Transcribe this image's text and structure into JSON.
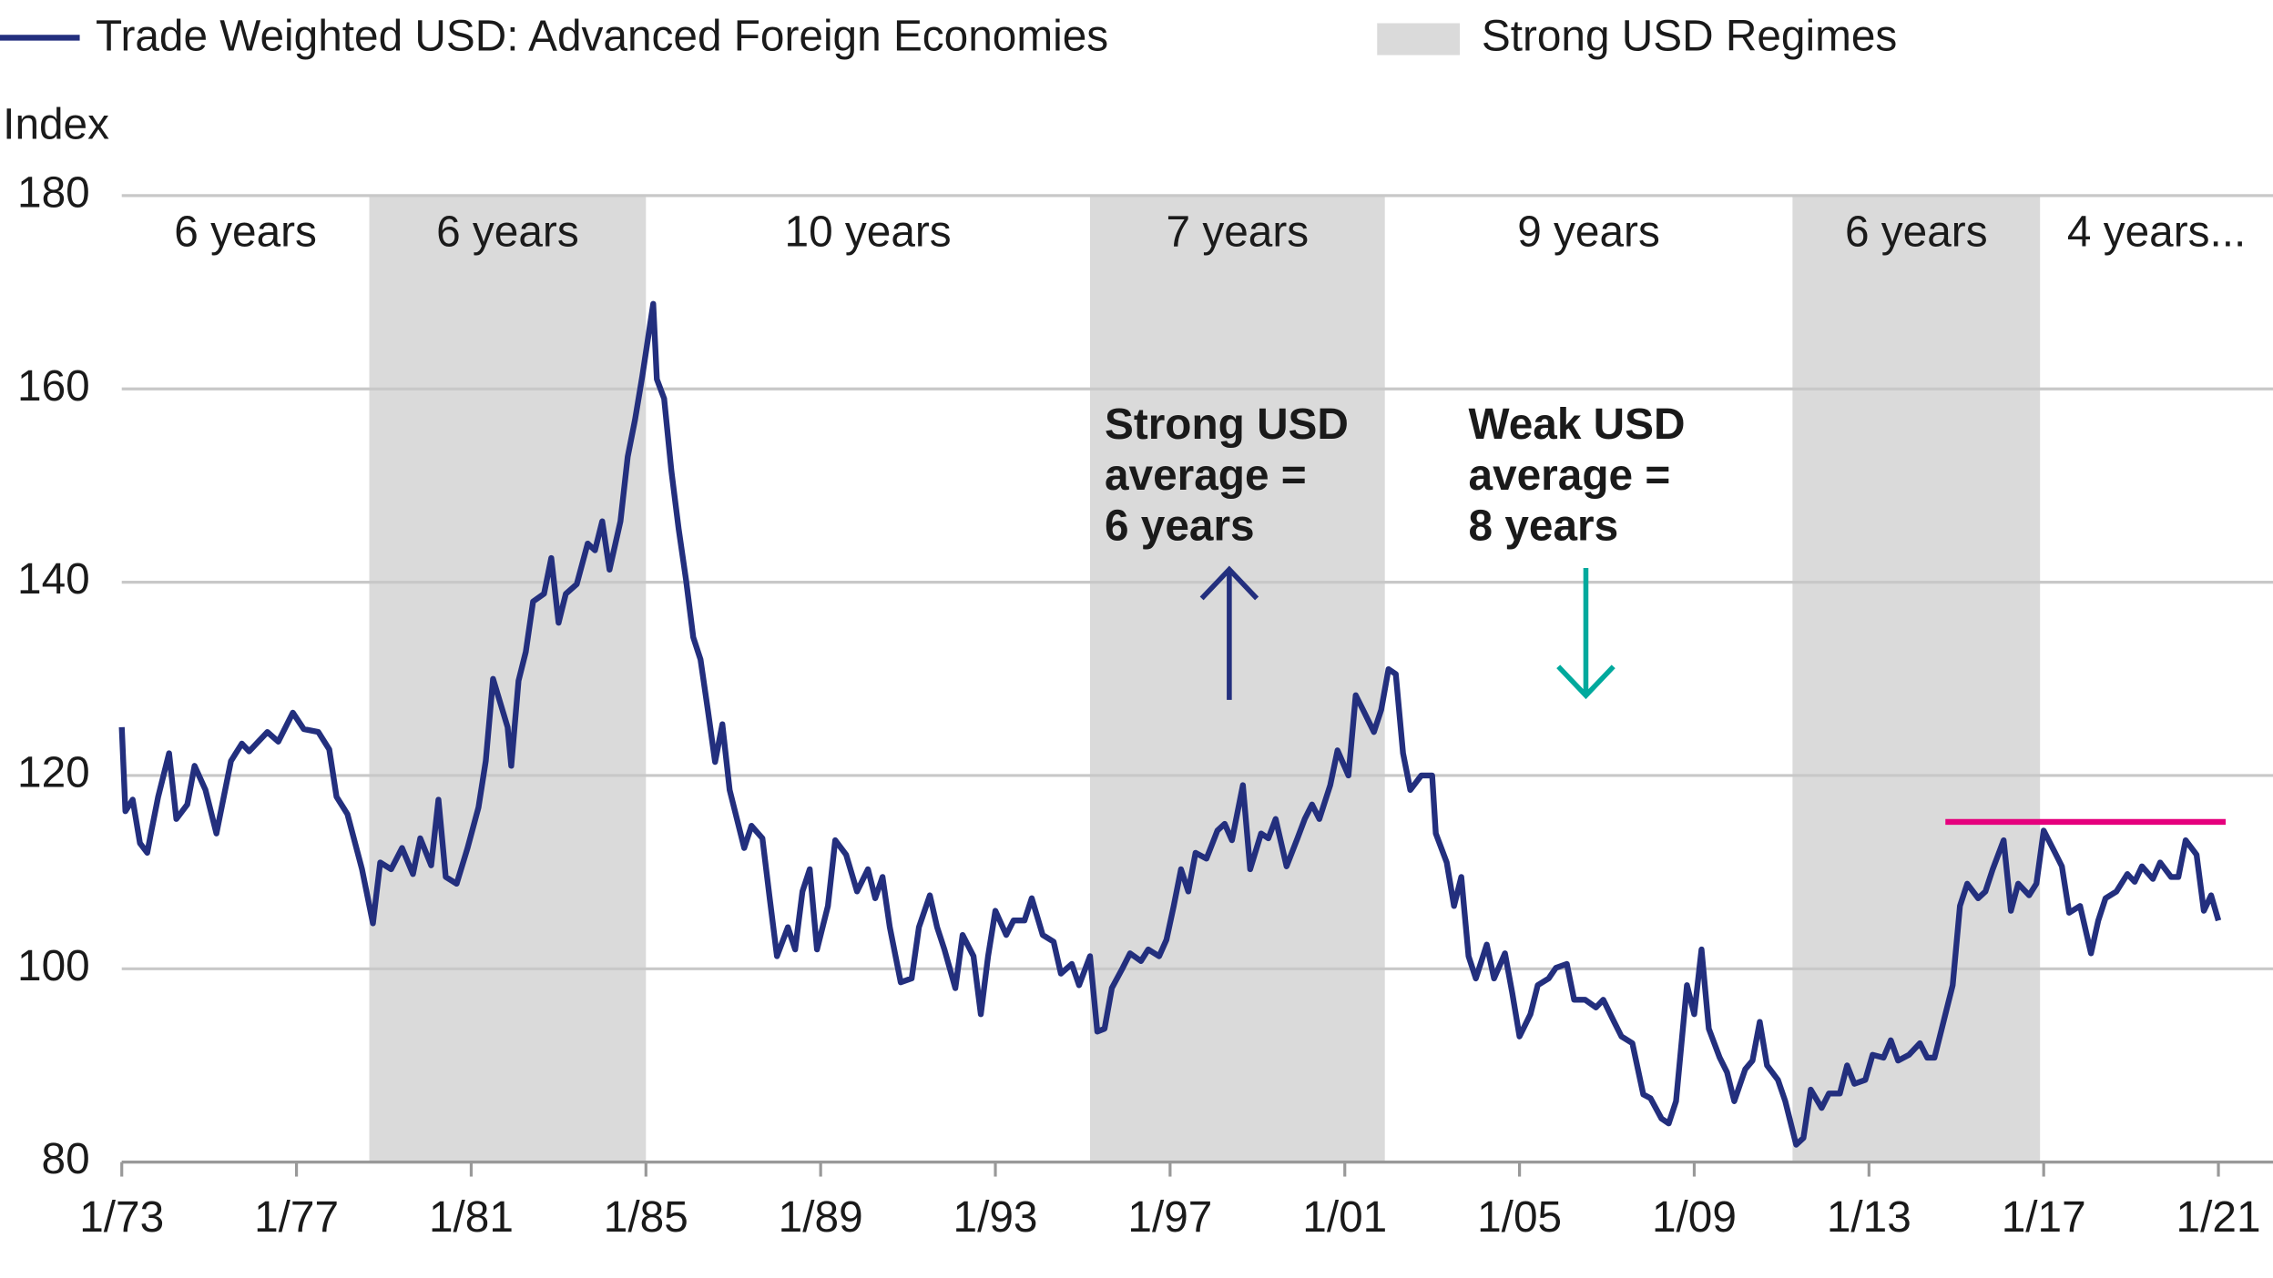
{
  "chart_data": {
    "type": "line",
    "y_axis_label": "Index",
    "xlim": [
      "1973-01",
      "2022-04"
    ],
    "xticks": [
      {
        "value": "1973-01",
        "label": "1/73"
      },
      {
        "value": "1977-01",
        "label": "1/77"
      },
      {
        "value": "1981-01",
        "label": "1/81"
      },
      {
        "value": "1985-01",
        "label": "1/85"
      },
      {
        "value": "1989-01",
        "label": "1/89"
      },
      {
        "value": "1993-01",
        "label": "1/93"
      },
      {
        "value": "1997-01",
        "label": "1/97"
      },
      {
        "value": "2001-01",
        "label": "1/01"
      },
      {
        "value": "2005-01",
        "label": "1/05"
      },
      {
        "value": "2009-01",
        "label": "1/09"
      },
      {
        "value": "2013-01",
        "label": "1/13"
      },
      {
        "value": "2017-01",
        "label": "1/17"
      },
      {
        "value": "2021-01",
        "label": "1/21"
      }
    ],
    "ylim": [
      80,
      180
    ],
    "yticks": [
      80,
      100,
      120,
      140,
      160,
      180
    ],
    "grid": true,
    "regimes": {
      "name": "Strong USD Regimes",
      "color": "#dadada",
      "periods": [
        [
          "1978-09",
          "1985-01"
        ],
        [
          "1995-03",
          "2001-12"
        ],
        [
          "2011-04",
          "2016-12"
        ]
      ]
    },
    "period_labels": {
      "labels": [
        "6 years",
        "6 years",
        "10 years",
        "7 years",
        "9 years",
        "6 years",
        "4 years..."
      ],
      "strong_color": "#1a1a1a",
      "weak_color": "#e5007d"
    },
    "reference_line": {
      "y": 115.2,
      "start": "2014-10",
      "end": "2021-03",
      "color": "#e5007d"
    },
    "annotations": [
      {
        "lines": [
          "Strong USD",
          "average =",
          "6 years"
        ],
        "color": "#232f7e",
        "arrow": "up"
      },
      {
        "lines": [
          "Weak USD",
          "average =",
          "8 years"
        ],
        "color": "#00a99d",
        "arrow": "down"
      }
    ],
    "series": [
      {
        "name": "Trade Weighted USD: Advanced Foreign Economies",
        "color": "#232f7e",
        "x": [
          "1973-01",
          "1973-02",
          "1973-04",
          "1973-06",
          "1973-08",
          "1973-09",
          "1973-11",
          "1974-02",
          "1974-04",
          "1974-07",
          "1974-09",
          "1974-12",
          "1975-03",
          "1975-07",
          "1975-10",
          "1975-12",
          "1976-05",
          "1976-08",
          "1976-12",
          "1977-03",
          "1977-07",
          "1977-10",
          "1977-12",
          "1978-03",
          "1978-07",
          "1978-10",
          "1978-12",
          "1979-03",
          "1979-06",
          "1979-09",
          "1979-11",
          "1980-02",
          "1980-04",
          "1980-06",
          "1980-09",
          "1980-12",
          "1981-03",
          "1981-05",
          "1981-07",
          "1981-11",
          "1981-12",
          "1982-02",
          "1982-04",
          "1982-06",
          "1982-09",
          "1982-11",
          "1983-01",
          "1983-03",
          "1983-06",
          "1983-09",
          "1983-11",
          "1984-01",
          "1984-03",
          "1984-06",
          "1984-08",
          "1984-10",
          "1984-12",
          "1985-03",
          "1985-04",
          "1985-06",
          "1985-08",
          "1985-10",
          "1985-12",
          "1986-02",
          "1986-04",
          "1986-06",
          "1986-08",
          "1986-10",
          "1986-12",
          "1987-04",
          "1987-06",
          "1987-09",
          "1987-11",
          "1988-01",
          "1988-04",
          "1988-06",
          "1988-08",
          "1988-10",
          "1988-12",
          "1989-03",
          "1989-05",
          "1989-08",
          "1989-11",
          "1990-02",
          "1990-04",
          "1990-06",
          "1990-08",
          "1990-11",
          "1991-02",
          "1991-04",
          "1991-07",
          "1991-09",
          "1991-11",
          "1992-02",
          "1992-04",
          "1992-07",
          "1992-09",
          "1992-11",
          "1993-01",
          "1993-04",
          "1993-06",
          "1993-09",
          "1993-11",
          "1994-02",
          "1994-05",
          "1994-07",
          "1994-10",
          "1994-12",
          "1995-03",
          "1995-05",
          "1995-07",
          "1995-09",
          "1995-12",
          "1996-02",
          "1996-05",
          "1996-07",
          "1996-10",
          "1996-12",
          "1997-02",
          "1997-04",
          "1997-06",
          "1997-08",
          "1997-11",
          "1998-02",
          "1998-04",
          "1998-06",
          "1998-09",
          "1998-11",
          "1999-02",
          "1999-04",
          "1999-06",
          "1999-09",
          "1999-12",
          "2000-02",
          "2000-04",
          "2000-06",
          "2000-09",
          "2000-11",
          "2001-02",
          "2001-04",
          "2001-06",
          "2001-09",
          "2001-11",
          "2002-01",
          "2002-03",
          "2002-05",
          "2002-07",
          "2002-10",
          "2003-01",
          "2003-02",
          "2003-05",
          "2003-07",
          "2003-09",
          "2003-11",
          "2004-01",
          "2004-04",
          "2004-06",
          "2004-09",
          "2004-11",
          "2005-01",
          "2005-04",
          "2005-06",
          "2005-09",
          "2005-11",
          "2006-02",
          "2006-04",
          "2006-07",
          "2006-10",
          "2006-12",
          "2007-03",
          "2007-05",
          "2007-08",
          "2007-11",
          "2008-01",
          "2008-04",
          "2008-06",
          "2008-08",
          "2008-11",
          "2009-01",
          "2009-03",
          "2009-05",
          "2009-08",
          "2009-10",
          "2009-12",
          "2010-03",
          "2010-05",
          "2010-07",
          "2010-09",
          "2010-12",
          "2011-02",
          "2011-05",
          "2011-07",
          "2011-09",
          "2011-12",
          "2012-02",
          "2012-05",
          "2012-07",
          "2012-09",
          "2012-12",
          "2013-02",
          "2013-05",
          "2013-07",
          "2013-09",
          "2013-12",
          "2014-03",
          "2014-05",
          "2014-07",
          "2014-10",
          "2014-12",
          "2015-02",
          "2015-04",
          "2015-07",
          "2015-09",
          "2015-11",
          "2016-02",
          "2016-04",
          "2016-06",
          "2016-09",
          "2016-11",
          "2017-01",
          "2017-04",
          "2017-06",
          "2017-08",
          "2017-11",
          "2018-02",
          "2018-04",
          "2018-06",
          "2018-09",
          "2018-12",
          "2019-02",
          "2019-04",
          "2019-07",
          "2019-09",
          "2019-12",
          "2020-02",
          "2020-04",
          "2020-07",
          "2020-09",
          "2020-11",
          "2021-01"
        ],
        "values": [
          125,
          116.3,
          117.5,
          113,
          112,
          114,
          117.8,
          122.3,
          115.5,
          117,
          121,
          118.5,
          114,
          121.5,
          123.3,
          122.5,
          124.5,
          123.5,
          126.5,
          124.8,
          124.5,
          122.7,
          117.8,
          116,
          110.3,
          104.7,
          111,
          110.3,
          112.5,
          109.8,
          113.5,
          110.7,
          117.5,
          109.5,
          108.8,
          112.5,
          116.7,
          121.5,
          130,
          125,
          121,
          129.8,
          132.8,
          138,
          138.8,
          142.5,
          135.8,
          138.8,
          139.8,
          144,
          143.3,
          146.3,
          141.3,
          146.3,
          153,
          156.8,
          161.3,
          168.8,
          161,
          159,
          151.5,
          145.5,
          140.3,
          134.3,
          132,
          126.8,
          121.4,
          125.3,
          118.5,
          112.5,
          114.8,
          113.5,
          107.3,
          101.3,
          104.3,
          102,
          108,
          110.3,
          102,
          106.5,
          113.3,
          111.8,
          108,
          110.3,
          107.3,
          109.5,
          104.3,
          98.6,
          99,
          104.3,
          107.6,
          104.3,
          102,
          98,
          103.5,
          101.3,
          95.3,
          101.3,
          106,
          103.5,
          105,
          105,
          107.3,
          103.5,
          102.8,
          99.5,
          100.5,
          98.3,
          101.3,
          93.5,
          93.8,
          98,
          100.1,
          101.6,
          100.8,
          102,
          101.3,
          103,
          106.5,
          110.3,
          108,
          112,
          111.4,
          114.3,
          115,
          113.3,
          119,
          110.3,
          114,
          113.5,
          115.5,
          110.6,
          113.5,
          115.5,
          117,
          115.5,
          119,
          122.6,
          120,
          128.3,
          126.8,
          124.5,
          126.8,
          131,
          130.5,
          122.3,
          118.5,
          120,
          120,
          114,
          111,
          106.5,
          109.5,
          101.3,
          99,
          102.5,
          99,
          101.6,
          97.5,
          93,
          95.3,
          98.3,
          99,
          100.1,
          100.5,
          96.8,
          96.8,
          96,
          96.8,
          94.5,
          93,
          92.3,
          87,
          86.6,
          84.5,
          84,
          86.3,
          98.3,
          95.3,
          102,
          93.8,
          90.8,
          89.3,
          86.3,
          89.6,
          90.5,
          94.5,
          90,
          88.5,
          86.3,
          81.8,
          82.5,
          87.5,
          85.6,
          87.1,
          87.1,
          90,
          88.1,
          88.5,
          91.1,
          90.8,
          92.6,
          90.5,
          91.1,
          92.3,
          90.8,
          90.8,
          95.3,
          98.3,
          106.5,
          108.8,
          107.3,
          108,
          110.3,
          113.3,
          106,
          108.8,
          107.6,
          108.8,
          114.3,
          112.1,
          110.6,
          105.8,
          106.5,
          101.6,
          105,
          107.3,
          108,
          109.8,
          109,
          110.6,
          109.3,
          111,
          109.5,
          109.5,
          113.3,
          111.8,
          106,
          107.6,
          105
        ]
      }
    ]
  }
}
